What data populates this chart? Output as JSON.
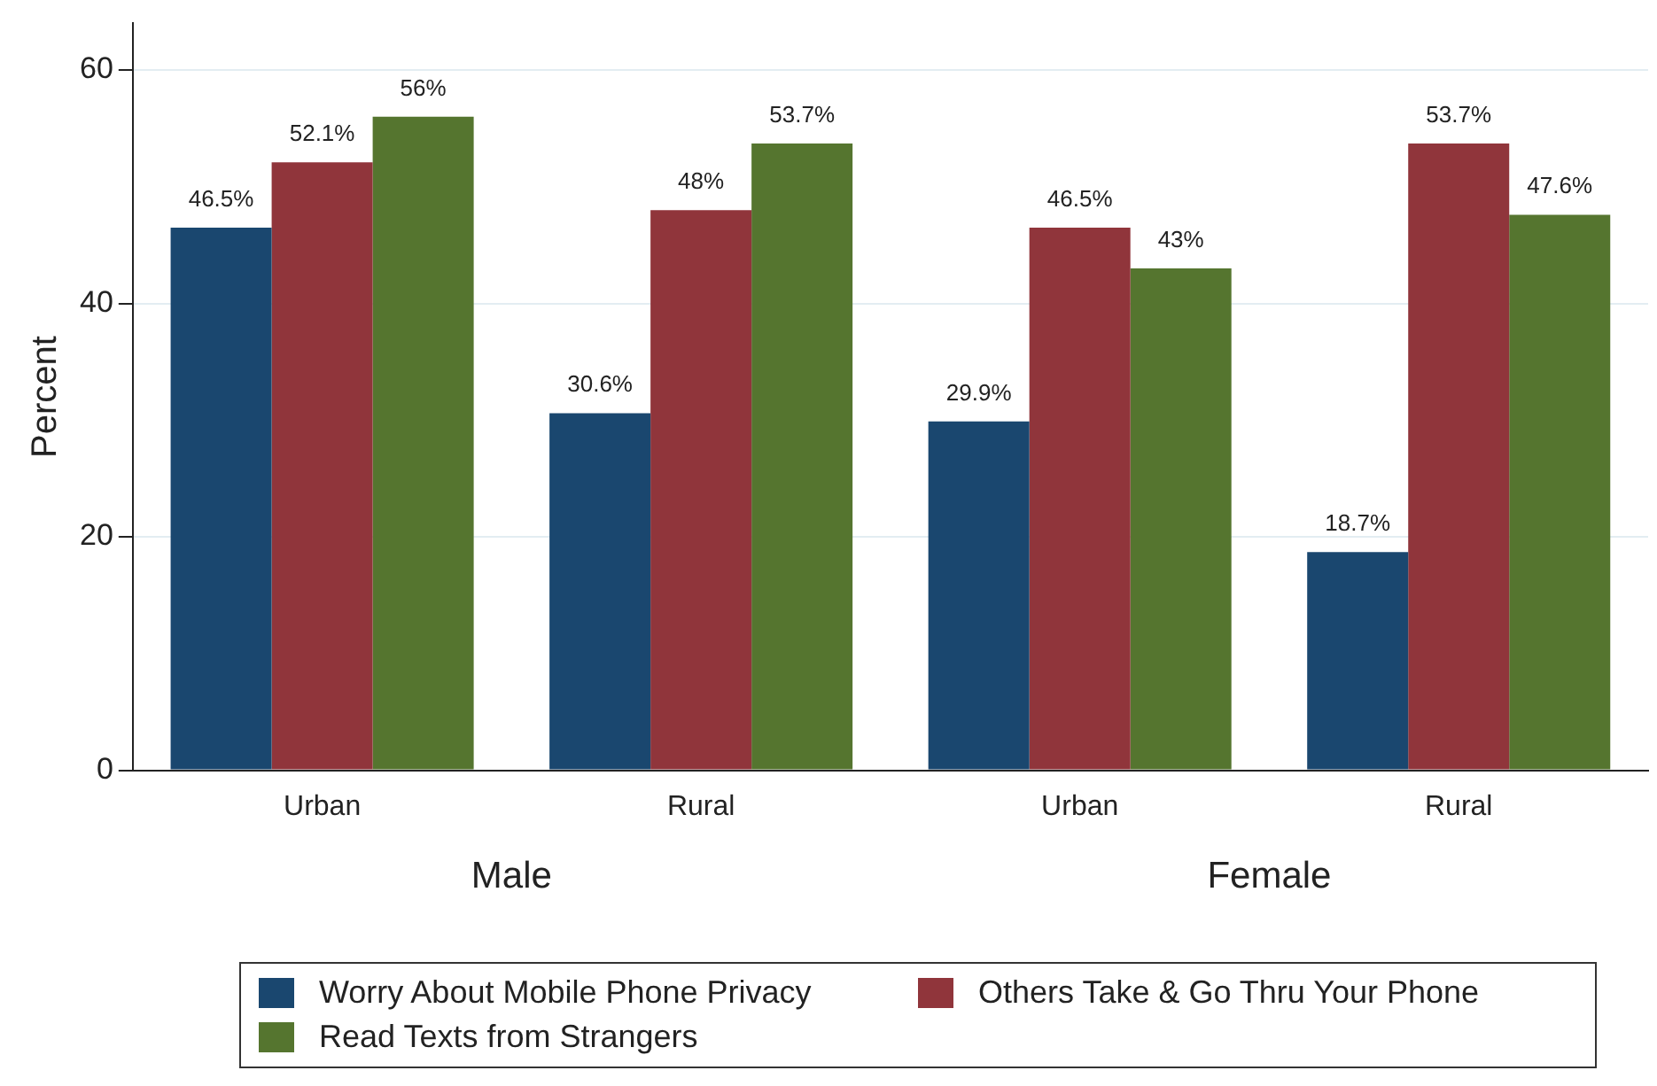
{
  "chart_data": {
    "type": "bar",
    "ylabel": "Percent",
    "categories": [
      "Urban",
      "Rural",
      "Urban",
      "Rural"
    ],
    "series": [
      {
        "name": "Worry About Mobile Phone Privacy",
        "color": "#1a476f",
        "values": [
          46.5,
          30.6,
          29.9,
          18.7
        ],
        "value_labels": [
          "46.5%",
          "30.6%",
          "29.9%",
          "18.7%"
        ]
      },
      {
        "name": "Others Take & Go Thru Your Phone",
        "color": "#90353b",
        "values": [
          52.1,
          48,
          46.5,
          53.7
        ],
        "value_labels": [
          "52.1%",
          "48%",
          "46.5%",
          "53.7%"
        ]
      },
      {
        "name": "Read Texts from Strangers",
        "color": "#55752f",
        "values": [
          56,
          53.7,
          43,
          47.6
        ],
        "value_labels": [
          "56%",
          "53.7%",
          "43%",
          "47.6%"
        ]
      }
    ],
    "annotations": [
      "Male",
      "Female"
    ],
    "ylim": [
      0,
      64
    ],
    "yticks": [
      0,
      20,
      40,
      60
    ],
    "grid": "y",
    "legend": "bottom"
  }
}
